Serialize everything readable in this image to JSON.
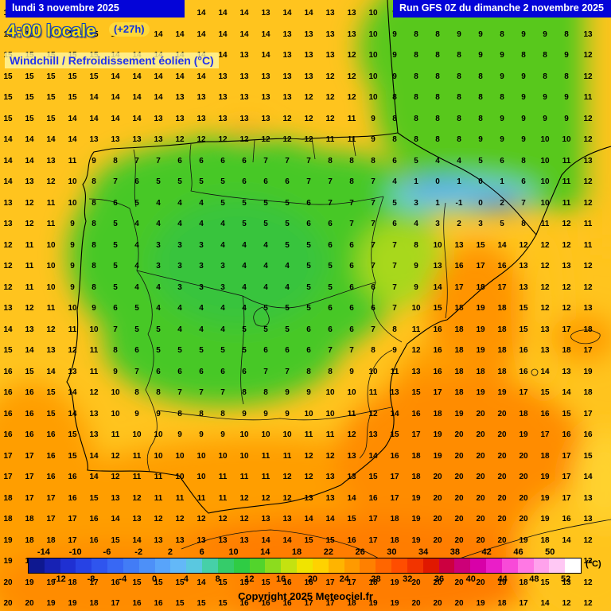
{
  "banner": {
    "date": "lundi 3 novembre 2025",
    "run": "Run GFS 0Z du dimanche 2 novembre 2025",
    "time": "4:00 locale",
    "offset": "(+27h)",
    "variable": "Windchill / Refroidissement éolien (°C)"
  },
  "footer": {
    "copyright": "Copyright 2025 Meteociel.fr",
    "unit": "(°C)"
  },
  "colors": {
    "banner_bg": "#0404d8",
    "banner_text": "#ffffff",
    "time_text": "#ffdf00",
    "offset_bg": "#ffd83a",
    "offset_text": "#1133dd",
    "variable_text": "#2233ee",
    "variable_bg": "rgba(255,248,160,0.8)",
    "map_base": "#ffc41e"
  },
  "scale": {
    "top_ticks": [
      -14,
      -10,
      -6,
      -2,
      2,
      6,
      10,
      14,
      18,
      22,
      26,
      30,
      34,
      38,
      42,
      46,
      50
    ],
    "bottom_ticks": [
      -12,
      -8,
      -4,
      0,
      4,
      8,
      12,
      16,
      20,
      24,
      28,
      32,
      36,
      40,
      44,
      48,
      52
    ],
    "segment_colors": [
      "#0e1890",
      "#1722b4",
      "#1f30d2",
      "#2742e4",
      "#2f55ee",
      "#3868f4",
      "#427cf6",
      "#4d90f8",
      "#58a4fa",
      "#63b8f8",
      "#5ac8e0",
      "#46d0a8",
      "#35cc6a",
      "#2fcc44",
      "#52d42c",
      "#8cdc1e",
      "#c4e210",
      "#f0e400",
      "#ffd200",
      "#ffb400",
      "#ff9a00",
      "#ff8000",
      "#ff6600",
      "#ff4d00",
      "#f23400",
      "#e01800",
      "#cc0040",
      "#cc0078",
      "#d800a8",
      "#ea1ec8",
      "#f84ad8",
      "#ff78e4",
      "#ffa2ec",
      "#ffc8f4",
      "#ffffff"
    ]
  },
  "grid": {
    "rows": [
      [
        15,
        15,
        15,
        15,
        15,
        15,
        14,
        14,
        14,
        14,
        14,
        14,
        13,
        14,
        14,
        13,
        13,
        10,
        9,
        8,
        9,
        9,
        9,
        8,
        9,
        8,
        9,
        12
      ],
      [
        15,
        15,
        15,
        15,
        15,
        14,
        14,
        14,
        14,
        14,
        14,
        14,
        14,
        13,
        13,
        13,
        13,
        10,
        9,
        8,
        8,
        9,
        9,
        8,
        9,
        9,
        8,
        13
      ],
      [
        15,
        15,
        15,
        15,
        15,
        14,
        14,
        14,
        14,
        14,
        14,
        13,
        14,
        13,
        13,
        13,
        12,
        10,
        9,
        8,
        8,
        8,
        9,
        9,
        8,
        8,
        9,
        12
      ],
      [
        15,
        15,
        15,
        15,
        15,
        14,
        14,
        14,
        14,
        14,
        13,
        13,
        13,
        13,
        13,
        12,
        12,
        10,
        9,
        8,
        8,
        8,
        8,
        9,
        9,
        8,
        8,
        12
      ],
      [
        15,
        15,
        15,
        15,
        14,
        14,
        14,
        14,
        13,
        13,
        13,
        13,
        13,
        13,
        12,
        12,
        12,
        10,
        8,
        8,
        8,
        8,
        8,
        8,
        9,
        9,
        9,
        11
      ],
      [
        15,
        15,
        15,
        14,
        14,
        14,
        14,
        13,
        13,
        13,
        13,
        13,
        13,
        12,
        12,
        12,
        11,
        9,
        8,
        8,
        8,
        8,
        8,
        9,
        9,
        9,
        9,
        12
      ],
      [
        14,
        14,
        14,
        14,
        13,
        13,
        13,
        13,
        12,
        12,
        12,
        12,
        12,
        12,
        12,
        11,
        11,
        9,
        8,
        8,
        8,
        8,
        9,
        9,
        9,
        10,
        10,
        12
      ],
      [
        14,
        14,
        13,
        11,
        9,
        8,
        7,
        7,
        6,
        6,
        6,
        6,
        7,
        7,
        7,
        8,
        8,
        8,
        6,
        5,
        4,
        4,
        5,
        6,
        8,
        10,
        11,
        13
      ],
      [
        14,
        13,
        12,
        10,
        8,
        7,
        6,
        5,
        5,
        5,
        5,
        6,
        6,
        6,
        7,
        7,
        8,
        7,
        4,
        1,
        0,
        1,
        0,
        1,
        6,
        10,
        11,
        12
      ],
      [
        13,
        12,
        11,
        10,
        8,
        6,
        5,
        4,
        4,
        4,
        5,
        5,
        5,
        5,
        6,
        7,
        7,
        7,
        5,
        3,
        1,
        -1,
        0,
        2,
        7,
        10,
        11,
        12
      ],
      [
        13,
        12,
        11,
        9,
        8,
        5,
        4,
        4,
        4,
        4,
        4,
        5,
        5,
        5,
        6,
        6,
        7,
        7,
        6,
        4,
        3,
        2,
        3,
        5,
        8,
        11,
        12,
        11
      ],
      [
        12,
        11,
        10,
        9,
        8,
        5,
        4,
        3,
        3,
        3,
        4,
        4,
        4,
        5,
        5,
        6,
        6,
        7,
        7,
        8,
        10,
        13,
        15,
        14,
        12,
        12,
        12,
        11
      ],
      [
        12,
        11,
        10,
        9,
        8,
        5,
        4,
        3,
        3,
        3,
        3,
        4,
        4,
        4,
        5,
        5,
        6,
        7,
        7,
        9,
        13,
        16,
        17,
        16,
        13,
        12,
        13,
        12
      ],
      [
        12,
        11,
        10,
        9,
        8,
        5,
        4,
        4,
        3,
        3,
        3,
        4,
        4,
        4,
        5,
        5,
        6,
        6,
        7,
        9,
        14,
        17,
        18,
        17,
        13,
        12,
        12,
        12
      ],
      [
        13,
        12,
        11,
        10,
        9,
        6,
        5,
        4,
        4,
        4,
        4,
        4,
        5,
        5,
        5,
        6,
        6,
        6,
        7,
        10,
        15,
        18,
        19,
        18,
        15,
        12,
        12,
        13
      ],
      [
        14,
        13,
        12,
        11,
        10,
        7,
        5,
        5,
        4,
        4,
        4,
        5,
        5,
        5,
        6,
        6,
        6,
        7,
        8,
        11,
        16,
        18,
        19,
        18,
        15,
        13,
        17,
        18
      ],
      [
        15,
        14,
        13,
        12,
        11,
        8,
        6,
        5,
        5,
        5,
        5,
        5,
        6,
        6,
        6,
        7,
        7,
        8,
        9,
        12,
        16,
        18,
        19,
        18,
        16,
        13,
        18,
        17
      ],
      [
        16,
        15,
        14,
        13,
        11,
        9,
        7,
        6,
        6,
        6,
        6,
        6,
        7,
        7,
        8,
        8,
        9,
        10,
        11,
        13,
        16,
        18,
        18,
        18,
        16,
        14,
        13,
        19
      ],
      [
        16,
        16,
        15,
        14,
        12,
        10,
        8,
        8,
        7,
        7,
        7,
        8,
        8,
        9,
        9,
        10,
        10,
        11,
        13,
        15,
        17,
        18,
        19,
        19,
        17,
        15,
        14,
        18
      ],
      [
        16,
        16,
        15,
        14,
        13,
        10,
        9,
        9,
        8,
        8,
        8,
        9,
        9,
        9,
        10,
        10,
        11,
        12,
        14,
        16,
        18,
        19,
        20,
        20,
        18,
        16,
        15,
        17
      ],
      [
        16,
        16,
        16,
        15,
        13,
        11,
        10,
        10,
        9,
        9,
        9,
        10,
        10,
        10,
        11,
        11,
        12,
        13,
        15,
        17,
        19,
        20,
        20,
        20,
        19,
        17,
        16,
        16
      ],
      [
        17,
        17,
        16,
        15,
        14,
        12,
        11,
        10,
        10,
        10,
        10,
        10,
        11,
        11,
        12,
        12,
        13,
        14,
        16,
        18,
        19,
        20,
        20,
        20,
        20,
        18,
        17,
        15
      ],
      [
        17,
        17,
        16,
        16,
        14,
        12,
        11,
        11,
        10,
        10,
        11,
        11,
        11,
        12,
        12,
        13,
        13,
        15,
        17,
        18,
        20,
        20,
        20,
        20,
        20,
        19,
        17,
        14
      ],
      [
        18,
        17,
        17,
        16,
        15,
        13,
        12,
        11,
        11,
        11,
        11,
        12,
        12,
        12,
        13,
        13,
        14,
        16,
        17,
        19,
        20,
        20,
        20,
        20,
        20,
        19,
        17,
        13
      ],
      [
        18,
        18,
        17,
        17,
        16,
        14,
        13,
        12,
        12,
        12,
        12,
        12,
        13,
        13,
        14,
        14,
        15,
        17,
        18,
        19,
        20,
        20,
        20,
        20,
        20,
        19,
        16,
        13
      ],
      [
        19,
        18,
        18,
        17,
        16,
        15,
        14,
        13,
        13,
        13,
        13,
        13,
        14,
        14,
        15,
        15,
        16,
        17,
        18,
        19,
        20,
        20,
        20,
        20,
        19,
        18,
        14,
        12
      ],
      [
        19,
        19,
        18,
        18,
        17,
        16,
        15,
        14,
        14,
        14,
        14,
        14,
        15,
        15,
        16,
        16,
        17,
        18,
        19,
        20,
        20,
        20,
        20,
        20,
        19,
        16,
        13,
        12
      ],
      [
        20,
        19,
        19,
        18,
        17,
        16,
        15,
        15,
        15,
        14,
        15,
        15,
        15,
        16,
        16,
        17,
        17,
        18,
        19,
        20,
        20,
        20,
        20,
        19,
        18,
        15,
        13,
        12
      ],
      [
        20,
        20,
        19,
        19,
        18,
        17,
        16,
        16,
        15,
        15,
        15,
        16,
        16,
        16,
        17,
        17,
        18,
        19,
        19,
        20,
        20,
        20,
        19,
        18,
        17,
        14,
        12,
        12
      ]
    ]
  }
}
